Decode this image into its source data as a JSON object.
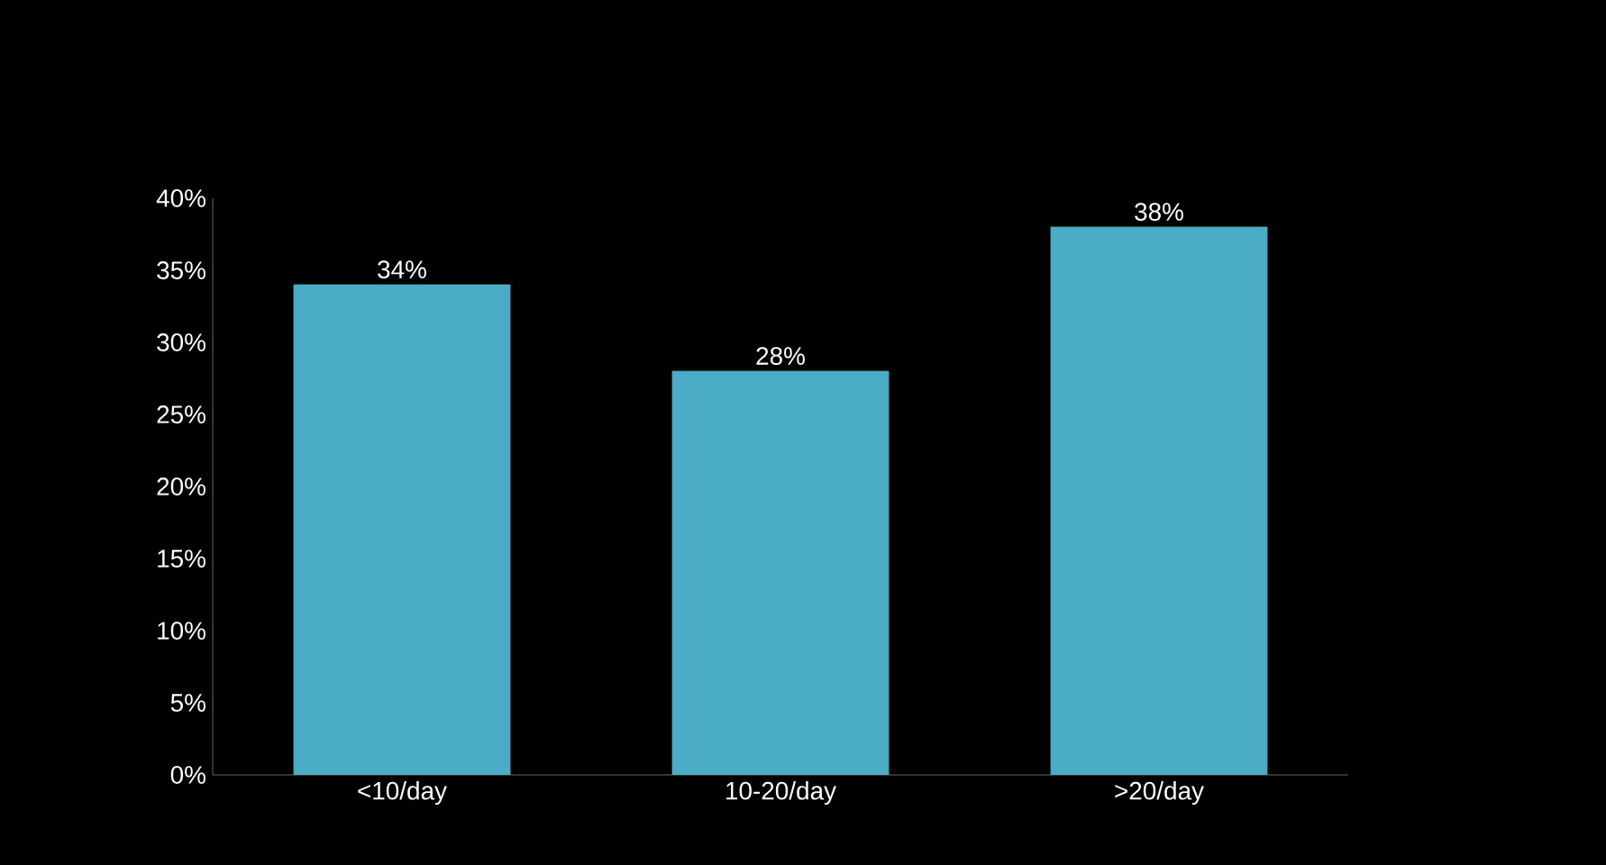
{
  "chart_data": {
    "type": "bar",
    "categories": [
      "<10/day",
      "10-20/day",
      ">20/day"
    ],
    "values": [
      34,
      28,
      38
    ],
    "value_labels": [
      "34%",
      "28%",
      "38%"
    ],
    "color": "#4bacc6",
    "ylim": [
      0,
      40
    ],
    "yticks": [
      {
        "value": 0,
        "label": "0%"
      },
      {
        "value": 5,
        "label": "5%"
      },
      {
        "value": 10,
        "label": "10%"
      },
      {
        "value": 15,
        "label": "15%"
      },
      {
        "value": 20,
        "label": "20%"
      },
      {
        "value": 25,
        "label": "25%"
      },
      {
        "value": 30,
        "label": "30%"
      },
      {
        "value": 35,
        "label": "35%"
      },
      {
        "value": 40,
        "label": "40%"
      }
    ]
  }
}
